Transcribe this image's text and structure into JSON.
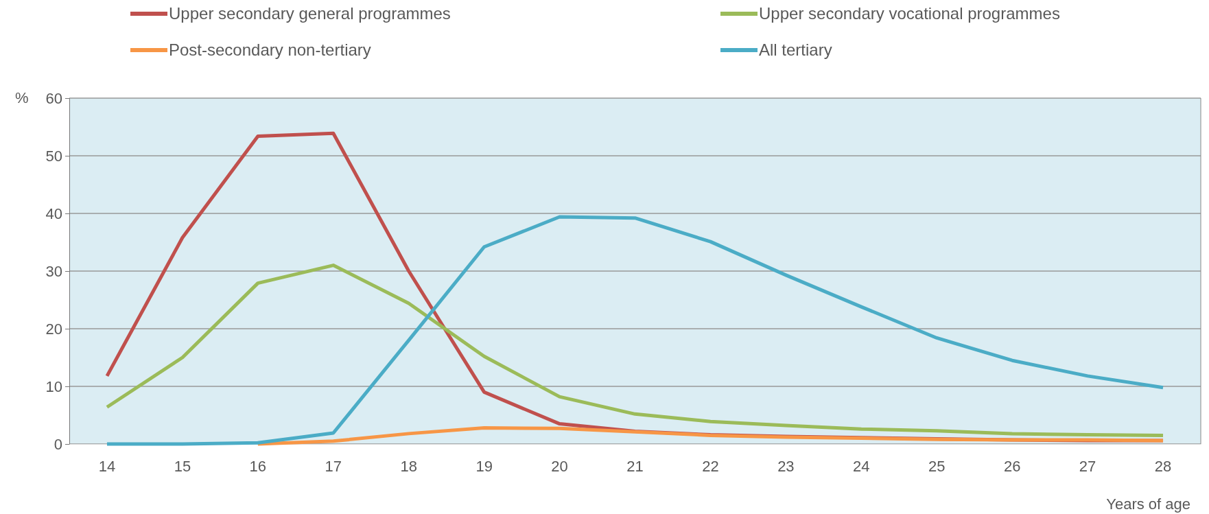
{
  "chart_data": {
    "type": "line",
    "xlabel": "Years of age",
    "ylabel": "%",
    "categories": [
      "14",
      "15",
      "16",
      "17",
      "18",
      "19",
      "20",
      "21",
      "22",
      "23",
      "24",
      "25",
      "26",
      "27",
      "28"
    ],
    "series": [
      {
        "name": "Upper secondary general programmes",
        "color": "#c0504d",
        "values": [
          11.8,
          35.8,
          53.4,
          53.9,
          30,
          9,
          3.5,
          2.2,
          1.6,
          1.3,
          1.1,
          0.9,
          0.7,
          0.6,
          0.6
        ]
      },
      {
        "name": "Upper secondary vocational programmes",
        "color": "#9bbb59",
        "values": [
          6.4,
          15,
          27.9,
          31,
          24.4,
          15.2,
          8.2,
          5.2,
          3.9,
          3.2,
          2.6,
          2.3,
          1.8,
          1.6,
          1.5
        ]
      },
      {
        "name": "Post-secondary non-tertiary",
        "color": "#f79646",
        "values": [
          null,
          null,
          0,
          0.5,
          1.8,
          2.8,
          2.7,
          2.1,
          1.5,
          1.2,
          1,
          0.8,
          0.7,
          0.7,
          0.6
        ]
      },
      {
        "name": "All tertiary",
        "color": "#4bacc6",
        "values": [
          0,
          0,
          0.2,
          1.9,
          18,
          34.2,
          39.4,
          39.2,
          35.1,
          29.3,
          23.8,
          18.4,
          14.5,
          11.8,
          9.8
        ]
      }
    ],
    "ylim": [
      0,
      60
    ],
    "yticks": [
      0,
      10,
      20,
      30,
      40,
      50,
      60
    ],
    "grid": "y",
    "legend": "top",
    "line_style": "solid"
  }
}
